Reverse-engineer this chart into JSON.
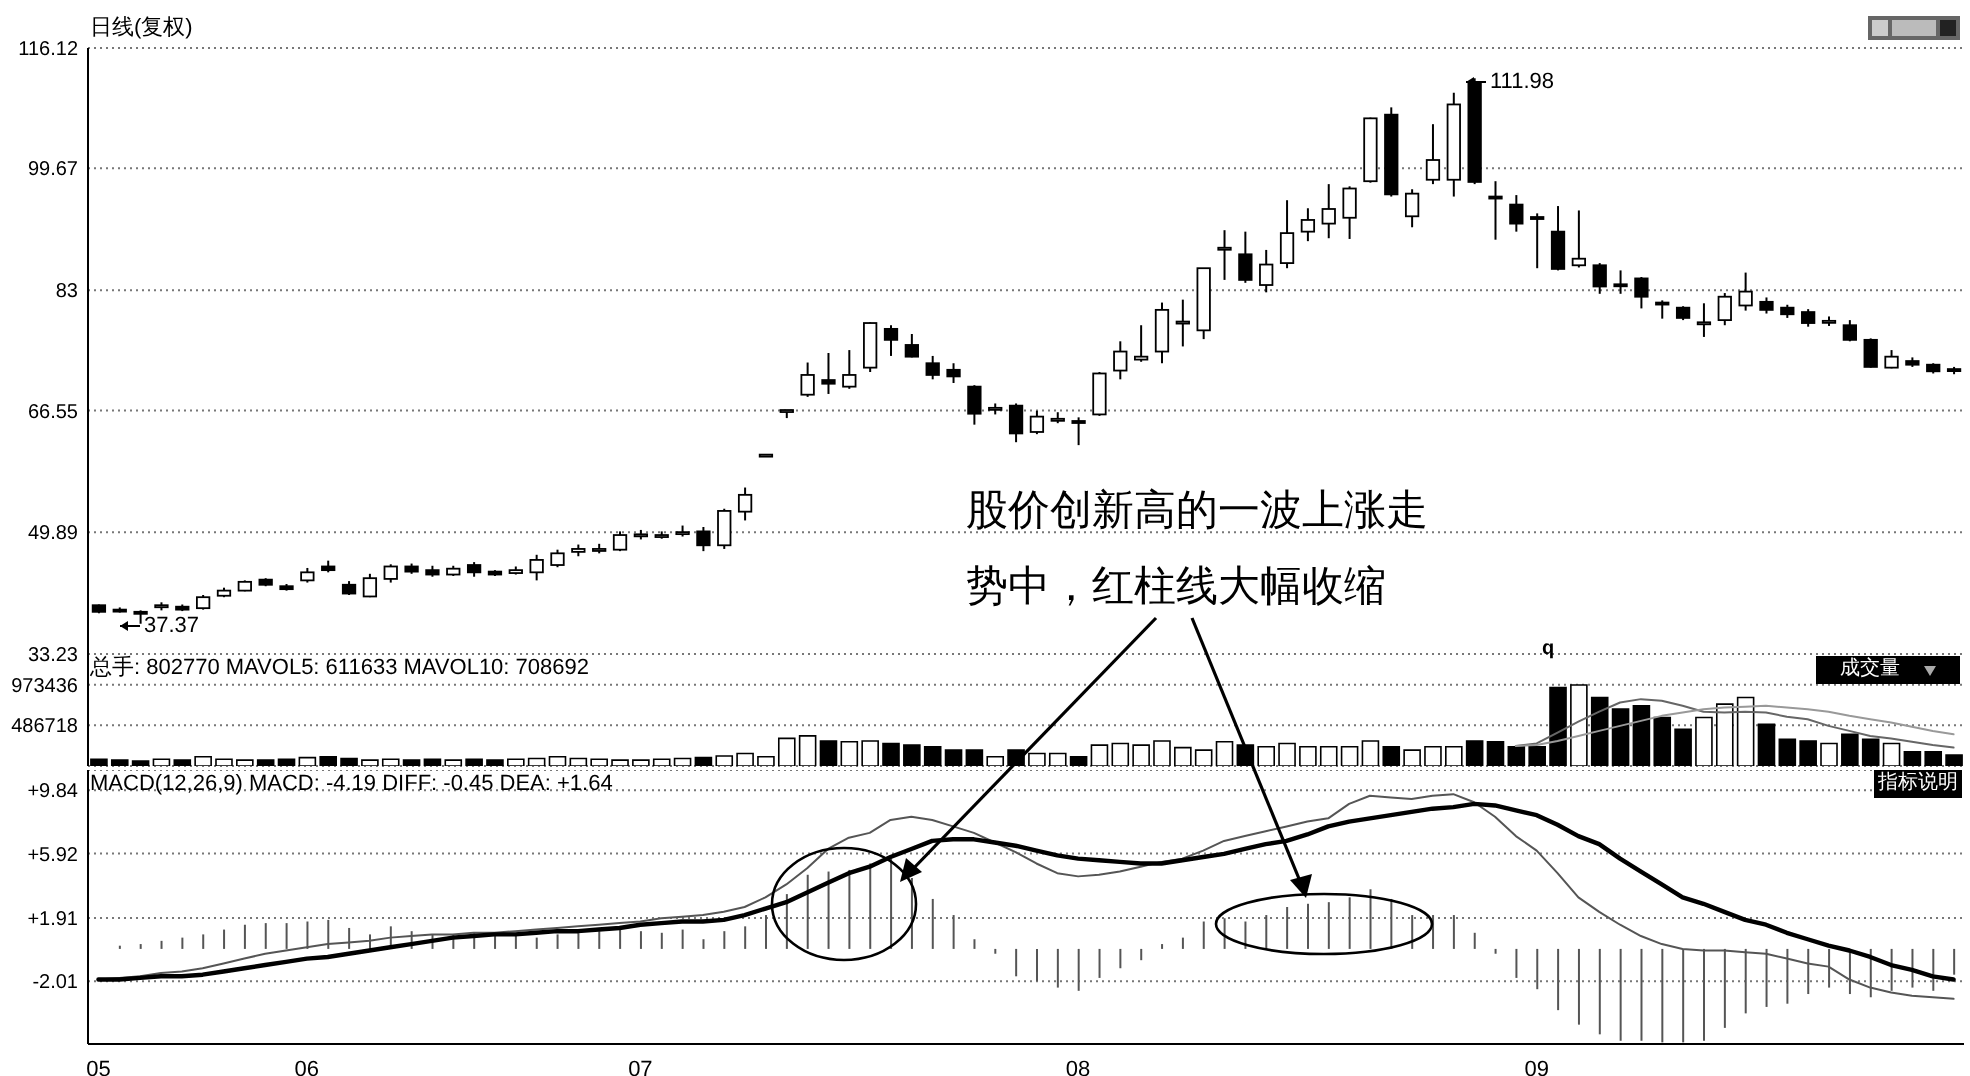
{
  "chart_data": [
    {
      "type": "candlestick",
      "title": "日线(复权)",
      "categories": [
        "05",
        null,
        null,
        null,
        null,
        null,
        null,
        null,
        null,
        null,
        "06",
        null,
        null,
        null,
        null,
        null,
        null,
        null,
        null,
        null,
        null,
        null,
        null,
        null,
        null,
        null,
        "07",
        null,
        null,
        null,
        null,
        null,
        null,
        null,
        null,
        null,
        null,
        null,
        null,
        null,
        null,
        null,
        null,
        null,
        null,
        null,
        null,
        "08",
        null,
        null,
        null,
        null,
        null,
        null,
        null,
        null,
        null,
        null,
        null,
        null,
        null,
        null,
        null,
        null,
        null,
        null,
        null,
        null,
        null,
        "09",
        null,
        null,
        null,
        null,
        null,
        null,
        null,
        null,
        null,
        null,
        null,
        null,
        null,
        null,
        null,
        null,
        null,
        null,
        null,
        null
      ],
      "ohlc": [
        [
          39.9,
          40.0,
          38.8,
          39.0
        ],
        [
          39.3,
          39.6,
          38.9,
          39.2
        ],
        [
          39.0,
          39.2,
          37.37,
          38.9
        ],
        [
          39.8,
          40.3,
          39.2,
          39.9
        ],
        [
          39.7,
          40.0,
          39.1,
          39.3
        ],
        [
          39.5,
          41.3,
          39.3,
          41.0
        ],
        [
          41.2,
          42.3,
          41.0,
          41.9
        ],
        [
          41.9,
          43.3,
          41.8,
          43.1
        ],
        [
          43.4,
          43.6,
          42.5,
          42.7
        ],
        [
          42.5,
          42.8,
          41.9,
          42.1
        ],
        [
          43.3,
          45.0,
          43.0,
          44.4
        ],
        [
          45.2,
          46.0,
          44.4,
          44.7
        ],
        [
          42.7,
          43.2,
          41.3,
          41.5
        ],
        [
          41.1,
          44.2,
          41.0,
          43.6
        ],
        [
          43.5,
          45.5,
          43.0,
          45.2
        ],
        [
          45.2,
          45.6,
          44.2,
          44.5
        ],
        [
          44.7,
          45.3,
          43.8,
          44.1
        ],
        [
          44.1,
          45.3,
          43.9,
          44.9
        ],
        [
          45.4,
          45.8,
          43.8,
          44.4
        ],
        [
          44.5,
          44.7,
          43.9,
          44.1
        ],
        [
          44.3,
          45.2,
          44.1,
          44.7
        ],
        [
          44.4,
          46.8,
          43.3,
          46.1
        ],
        [
          45.4,
          47.5,
          45.1,
          47.0
        ],
        [
          47.2,
          48.2,
          46.6,
          47.6
        ],
        [
          47.5,
          48.3,
          47.0,
          47.6
        ],
        [
          47.5,
          50.0,
          47.3,
          49.5
        ],
        [
          49.5,
          50.2,
          48.9,
          49.6
        ],
        [
          49.4,
          50.0,
          49.0,
          49.5
        ],
        [
          49.8,
          50.8,
          49.3,
          49.9
        ],
        [
          50.0,
          50.6,
          47.3,
          48.1
        ],
        [
          48.1,
          53.1,
          47.6,
          52.8
        ],
        [
          52.7,
          56.0,
          51.5,
          55.0
        ],
        [
          60.4,
          60.5,
          60.4,
          60.5
        ],
        [
          66.5,
          66.6,
          65.5,
          66.6
        ],
        [
          68.7,
          73.1,
          68.4,
          71.4
        ],
        [
          70.7,
          74.4,
          68.8,
          70.2
        ],
        [
          69.8,
          74.8,
          69.5,
          71.4
        ],
        [
          72.4,
          78.6,
          71.8,
          78.5
        ],
        [
          77.7,
          78.2,
          74.0,
          76.2
        ],
        [
          75.5,
          77.0,
          73.8,
          73.9
        ],
        [
          73.0,
          74.0,
          70.8,
          71.4
        ],
        [
          72.1,
          73.0,
          70.3,
          71.2
        ],
        [
          69.8,
          70.0,
          64.6,
          66.1
        ],
        [
          66.8,
          67.5,
          66.0,
          66.9
        ],
        [
          67.2,
          67.5,
          62.2,
          63.4
        ],
        [
          63.6,
          66.5,
          63.3,
          65.7
        ],
        [
          65.3,
          66.3,
          64.8,
          65.4
        ],
        [
          65.1,
          65.6,
          61.8,
          65.0
        ],
        [
          66.0,
          71.8,
          65.8,
          71.6
        ],
        [
          72.0,
          76.0,
          70.8,
          74.6
        ],
        [
          73.5,
          78.2,
          73.2,
          73.9
        ],
        [
          74.6,
          81.3,
          73.0,
          80.3
        ],
        [
          78.6,
          81.7,
          75.3,
          78.7
        ],
        [
          77.5,
          86.0,
          76.3,
          86.0
        ],
        [
          88.7,
          91.2,
          84.4,
          88.8
        ],
        [
          87.9,
          91.0,
          84.0,
          84.4
        ],
        [
          83.7,
          88.5,
          82.7,
          86.5
        ],
        [
          86.7,
          95.3,
          86.0,
          90.8
        ],
        [
          91.0,
          94.2,
          89.7,
          92.6
        ],
        [
          92.1,
          97.5,
          90.1,
          94.1
        ],
        [
          92.9,
          97.2,
          90.0,
          96.9
        ],
        [
          97.9,
          106.6,
          97.7,
          106.5
        ],
        [
          107.0,
          108.0,
          95.8,
          96.1
        ],
        [
          93.1,
          96.8,
          91.6,
          96.2
        ],
        [
          98.1,
          105.7,
          97.5,
          100.8
        ],
        [
          98.1,
          110.0,
          95.8,
          108.4
        ],
        [
          111.3,
          111.98,
          97.5,
          97.8
        ],
        [
          95.8,
          97.9,
          89.9,
          95.7
        ],
        [
          94.7,
          96.0,
          91.0,
          92.1
        ],
        [
          93.0,
          93.5,
          86.0,
          92.9
        ],
        [
          91.0,
          94.5,
          85.7,
          85.9
        ],
        [
          86.4,
          93.9,
          86.1,
          87.3
        ],
        [
          86.4,
          86.7,
          82.5,
          83.5
        ],
        [
          83.8,
          85.7,
          82.5,
          83.7
        ],
        [
          84.6,
          84.8,
          80.5,
          82.1
        ],
        [
          81.3,
          81.6,
          79.1,
          81.2
        ],
        [
          80.6,
          80.8,
          78.9,
          79.2
        ],
        [
          78.5,
          81.2,
          76.6,
          78.6
        ],
        [
          78.9,
          82.6,
          78.2,
          82.1
        ],
        [
          80.9,
          85.4,
          80.2,
          82.8
        ],
        [
          81.4,
          82.0,
          79.8,
          80.3
        ],
        [
          80.6,
          81.0,
          79.2,
          79.7
        ],
        [
          80.0,
          80.4,
          78.0,
          78.5
        ],
        [
          78.7,
          79.4,
          78.1,
          78.8
        ],
        [
          78.2,
          78.9,
          76.0,
          76.2
        ],
        [
          76.2,
          76.4,
          72.4,
          72.5
        ],
        [
          72.4,
          74.8,
          72.3,
          73.9
        ],
        [
          73.3,
          73.8,
          72.5,
          72.8
        ],
        [
          72.8,
          73.0,
          71.6,
          71.9
        ],
        [
          72.2,
          72.5,
          71.5,
          72.1
        ]
      ],
      "colors": [
        "#000000",
        "#000000",
        "#000000",
        "#ffffff",
        "#000000",
        "#ffffff",
        "#ffffff",
        "#ffffff",
        "#000000",
        "#000000",
        "#ffffff",
        "#000000",
        "#000000",
        "#ffffff",
        "#ffffff",
        "#000000",
        "#000000",
        "#ffffff",
        "#000000",
        "#000000",
        "#ffffff",
        "#ffffff",
        "#ffffff",
        "#ffffff",
        "#ffffff",
        "#ffffff",
        "#ffffff",
        "#ffffff",
        "#ffffff",
        "#000000",
        "#ffffff",
        "#ffffff",
        "#ffffff",
        "#ffffff",
        "#ffffff",
        "#000000",
        "#ffffff",
        "#ffffff",
        "#000000",
        "#000000",
        "#000000",
        "#000000",
        "#000000",
        "#ffffff",
        "#000000",
        "#ffffff",
        "#ffffff",
        "#000000",
        "#ffffff",
        "#ffffff",
        "#ffffff",
        "#ffffff",
        "#ffffff",
        "#ffffff",
        "#ffffff",
        "#000000",
        "#ffffff",
        "#ffffff",
        "#ffffff",
        "#ffffff",
        "#ffffff",
        "#ffffff",
        "#000000",
        "#ffffff",
        "#ffffff",
        "#ffffff",
        "#000000",
        "#000000",
        "#000000",
        "#000000",
        "#000000",
        "#ffffff",
        "#000000",
        "#000000",
        "#000000",
        "#000000",
        "#000000",
        "#ffffff",
        "#ffffff",
        "#ffffff",
        "#000000",
        "#000000",
        "#000000",
        "#ffffff",
        "#000000",
        "#000000",
        "#ffffff",
        "#000000",
        "#000000",
        "#000000"
      ],
      "ylim": [
        33.23,
        116.12
      ],
      "yticks": [
        33.23,
        49.89,
        66.55,
        83.0,
        99.67,
        116.12
      ],
      "grid": "y",
      "tick_labels": "y",
      "annotations": [
        "111.98",
        "37.37",
        "股价创新高的一波上涨走势中，红柱线大幅收缩"
      ]
    },
    {
      "type": "bar",
      "title": "总手: 802770 MAVOL5: 611633 MAVOL10: 708692",
      "categories": [
        "05",
        null,
        null,
        null,
        null,
        null,
        null,
        null,
        null,
        null,
        "06",
        null,
        null,
        null,
        null,
        null,
        null,
        null,
        null,
        null,
        null,
        null,
        null,
        null,
        null,
        null,
        "07",
        null,
        null,
        null,
        null,
        null,
        null,
        null,
        null,
        null,
        null,
        null,
        null,
        null,
        null,
        null,
        null,
        null,
        null,
        null,
        null,
        "08",
        null,
        null,
        null,
        null,
        null,
        null,
        null,
        null,
        null,
        null,
        null,
        null,
        null,
        null,
        null,
        null,
        null,
        null,
        null,
        null,
        null,
        "09",
        null,
        null,
        null,
        null,
        null,
        null,
        null,
        null,
        null,
        null,
        null,
        null,
        null,
        null,
        null,
        null,
        null,
        null,
        null,
        null
      ],
      "series": [
        {
          "type": "bar",
          "values": [
            80000,
            70000,
            60000,
            80000,
            70000,
            110000,
            80000,
            70000,
            70000,
            80000,
            100000,
            110000,
            90000,
            70000,
            80000,
            70000,
            80000,
            70000,
            80000,
            70000,
            80000,
            90000,
            110000,
            90000,
            80000,
            70000,
            70000,
            80000,
            90000,
            100000,
            120000,
            150000,
            110000,
            330000,
            360000,
            300000,
            290000,
            300000,
            270000,
            250000,
            230000,
            190000,
            190000,
            110000,
            190000,
            150000,
            150000,
            110000,
            250000,
            270000,
            250000,
            300000,
            220000,
            190000,
            290000,
            250000,
            230000,
            270000,
            230000,
            230000,
            230000,
            300000,
            230000,
            190000,
            230000,
            230000,
            300000,
            290000,
            230000,
            230000,
            940000,
            970000,
            820000,
            680000,
            720000,
            580000,
            440000,
            580000,
            740000,
            820000,
            500000,
            320000,
            300000,
            270000,
            380000,
            320000,
            270000,
            170000,
            170000,
            130000
          ],
          "colors": [
            "#000000",
            "#000000",
            "#000000",
            "#ffffff",
            "#000000",
            "#ffffff",
            "#ffffff",
            "#ffffff",
            "#000000",
            "#000000",
            "#ffffff",
            "#000000",
            "#000000",
            "#ffffff",
            "#ffffff",
            "#000000",
            "#000000",
            "#ffffff",
            "#000000",
            "#000000",
            "#ffffff",
            "#ffffff",
            "#ffffff",
            "#ffffff",
            "#ffffff",
            "#ffffff",
            "#ffffff",
            "#ffffff",
            "#ffffff",
            "#000000",
            "#ffffff",
            "#ffffff",
            "#ffffff",
            "#ffffff",
            "#ffffff",
            "#000000",
            "#ffffff",
            "#ffffff",
            "#000000",
            "#000000",
            "#000000",
            "#000000",
            "#000000",
            "#ffffff",
            "#000000",
            "#ffffff",
            "#ffffff",
            "#000000",
            "#ffffff",
            "#ffffff",
            "#ffffff",
            "#ffffff",
            "#ffffff",
            "#ffffff",
            "#ffffff",
            "#000000",
            "#ffffff",
            "#ffffff",
            "#ffffff",
            "#ffffff",
            "#ffffff",
            "#ffffff",
            "#000000",
            "#ffffff",
            "#ffffff",
            "#ffffff",
            "#000000",
            "#000000",
            "#000000",
            "#000000",
            "#000000",
            "#ffffff",
            "#000000",
            "#000000",
            "#000000",
            "#000000",
            "#000000",
            "#ffffff",
            "#ffffff",
            "#ffffff",
            "#000000",
            "#000000",
            "#000000",
            "#ffffff",
            "#000000",
            "#000000",
            "#ffffff",
            "#000000",
            "#000000",
            "#000000"
          ]
        },
        {
          "type": "line",
          "color": "#666666",
          "values": [
            null,
            null,
            null,
            null,
            null,
            null,
            null,
            null,
            null,
            null,
            null,
            null,
            null,
            null,
            null,
            null,
            null,
            null,
            null,
            null,
            null,
            null,
            null,
            null,
            null,
            null,
            null,
            null,
            null,
            null,
            null,
            null,
            null,
            null,
            null,
            null,
            null,
            null,
            null,
            null,
            null,
            null,
            null,
            null,
            null,
            null,
            null,
            null,
            null,
            null,
            null,
            null,
            null,
            null,
            null,
            null,
            null,
            null,
            null,
            null,
            null,
            null,
            null,
            null,
            null,
            null,
            null,
            null,
            240000,
            270000,
            400000,
            530000,
            650000,
            760000,
            800000,
            780000,
            720000,
            650000,
            640000,
            650000,
            640000,
            590000,
            560000,
            480000,
            420000,
            360000,
            330000,
            290000,
            250000,
            220000
          ]
        },
        {
          "type": "line",
          "color": "#999999",
          "values": [
            null,
            null,
            null,
            null,
            null,
            null,
            null,
            null,
            null,
            null,
            null,
            null,
            null,
            null,
            null,
            null,
            null,
            null,
            null,
            null,
            null,
            null,
            null,
            null,
            null,
            null,
            null,
            null,
            null,
            null,
            null,
            null,
            null,
            null,
            null,
            null,
            null,
            null,
            null,
            null,
            null,
            null,
            null,
            null,
            null,
            null,
            null,
            null,
            null,
            null,
            null,
            null,
            null,
            null,
            null,
            null,
            null,
            null,
            null,
            null,
            null,
            null,
            null,
            null,
            null,
            null,
            null,
            null,
            240000,
            250000,
            300000,
            360000,
            420000,
            480000,
            540000,
            600000,
            640000,
            680000,
            700000,
            710000,
            720000,
            700000,
            680000,
            650000,
            600000,
            560000,
            520000,
            470000,
            420000,
            380000
          ]
        }
      ],
      "ylim": [
        0,
        1340000
      ],
      "yticks": [
        486718,
        973436
      ],
      "grid": "y",
      "tick_labels": "y",
      "annotations": [
        "q",
        "成交量"
      ]
    },
    {
      "type": "bar",
      "title": "MACD(12,26,9) MACD: -4.19 DIFF: -0.45 DEA: +1.64",
      "categories": [
        "05",
        null,
        null,
        null,
        null,
        null,
        null,
        null,
        null,
        null,
        "06",
        null,
        null,
        null,
        null,
        null,
        null,
        null,
        null,
        null,
        null,
        null,
        null,
        null,
        null,
        null,
        "07",
        null,
        null,
        null,
        null,
        null,
        null,
        null,
        null,
        null,
        null,
        null,
        null,
        null,
        null,
        null,
        null,
        null,
        null,
        null,
        null,
        "08",
        null,
        null,
        null,
        null,
        null,
        null,
        null,
        null,
        null,
        null,
        null,
        null,
        null,
        null,
        null,
        null,
        null,
        null,
        null,
        null,
        null,
        "09",
        null,
        null,
        null,
        null,
        null,
        null,
        null,
        null,
        null,
        null,
        null,
        null,
        null,
        null,
        null,
        null,
        null,
        null,
        null,
        null
      ],
      "series": [
        {
          "type": "bar",
          "color": "#555555",
          "values": [
            null,
            0.2,
            0.3,
            0.5,
            0.7,
            0.9,
            1.2,
            1.5,
            1.6,
            1.6,
            1.7,
            1.8,
            1.3,
            0.9,
            1.4,
            1.1,
            0.9,
            0.9,
            1.0,
            0.9,
            0.9,
            0.7,
            0.9,
            1.0,
            1.1,
            1.2,
            1.1,
            1.0,
            1.2,
            0.6,
            1.1,
            1.4,
            2.1,
            3.4,
            4.6,
            4.8,
            4.9,
            5.3,
            5.6,
            4.4,
            3.1,
            2.1,
            0.6,
            -0.3,
            -1.7,
            -2.0,
            -2.4,
            -2.6,
            -1.8,
            -1.2,
            -0.7,
            0.3,
            0.7,
            1.7,
            1.9,
            1.7,
            2.1,
            2.6,
            2.8,
            2.9,
            3.2,
            3.7,
            3.1,
            2.1,
            2.1,
            2.1,
            1.0,
            -0.3,
            -1.8,
            -2.5,
            -3.8,
            -4.7,
            -5.3,
            -5.7,
            -5.7,
            -5.8,
            -5.8,
            -5.7,
            -4.9,
            -4.0,
            -3.6,
            -3.4,
            -2.8,
            -2.4,
            -2.8,
            -3.0,
            -2.6,
            -2.4,
            -2.6,
            -1.6
          ]
        },
        {
          "type": "line",
          "color": "#555555",
          "values": [
            -1.9,
            -1.8,
            -1.7,
            -1.5,
            -1.4,
            -1.2,
            -0.9,
            -0.6,
            -0.3,
            -0.1,
            0.1,
            0.3,
            0.4,
            0.5,
            0.7,
            0.8,
            0.9,
            0.9,
            1.0,
            1.0,
            1.1,
            1.2,
            1.3,
            1.4,
            1.5,
            1.6,
            1.7,
            1.9,
            2.0,
            2.1,
            2.3,
            2.6,
            3.2,
            4.0,
            5.0,
            6.2,
            6.9,
            7.2,
            8.0,
            8.2,
            8.0,
            7.6,
            7.2,
            6.6,
            6.0,
            5.3,
            4.7,
            4.5,
            4.6,
            4.8,
            5.1,
            5.4,
            5.6,
            6.1,
            6.7,
            7.0,
            7.3,
            7.6,
            7.9,
            8.1,
            9.0,
            9.5,
            9.4,
            9.3,
            9.5,
            9.6,
            9.1,
            8.2,
            7.0,
            6.1,
            4.7,
            3.2,
            2.3,
            1.5,
            0.8,
            0.3,
            0,
            -0.1,
            -0.1,
            -0.2,
            -0.3,
            -0.6,
            -0.9,
            -1.1,
            -1.9,
            -2.4,
            -2.7,
            -2.9,
            -3.0,
            -3.1
          ]
        },
        {
          "type": "line",
          "color": "#000000",
          "values": [
            -1.9,
            -1.9,
            -1.8,
            -1.7,
            -1.7,
            -1.6,
            -1.4,
            -1.2,
            -1.0,
            -0.8,
            -0.6,
            -0.5,
            -0.3,
            -0.1,
            0.1,
            0.3,
            0.5,
            0.7,
            0.8,
            0.9,
            0.9,
            1.0,
            1.1,
            1.1,
            1.2,
            1.3,
            1.5,
            1.6,
            1.7,
            1.7,
            1.8,
            2.1,
            2.5,
            2.9,
            3.5,
            4.1,
            4.7,
            5.1,
            5.7,
            6.2,
            6.7,
            6.8,
            6.8,
            6.6,
            6.4,
            6.1,
            5.8,
            5.6,
            5.5,
            5.4,
            5.3,
            5.3,
            5.5,
            5.7,
            5.9,
            6.2,
            6.5,
            6.7,
            7.1,
            7.6,
            7.9,
            8.1,
            8.3,
            8.5,
            8.7,
            8.8,
            9.0,
            8.9,
            8.6,
            8.3,
            7.7,
            7.0,
            6.5,
            5.6,
            4.8,
            4.0,
            3.2,
            2.8,
            2.3,
            1.8,
            1.5,
            1.0,
            0.6,
            0.2,
            -0.1,
            -0.5,
            -1.0,
            -1.3,
            -1.7,
            -1.9
          ]
        }
      ],
      "ylim": [
        -5.9,
        11.1
      ],
      "yticks": [
        {
          "value": -2.01,
          "label": "-2.01"
        },
        {
          "value": 1.91,
          "label": "+1.91"
        },
        {
          "value": 5.92,
          "label": "+5.92"
        },
        {
          "value": 9.84,
          "label": "+9.84"
        }
      ],
      "grid": "y",
      "annotations": [
        "指标说明"
      ]
    }
  ]
}
